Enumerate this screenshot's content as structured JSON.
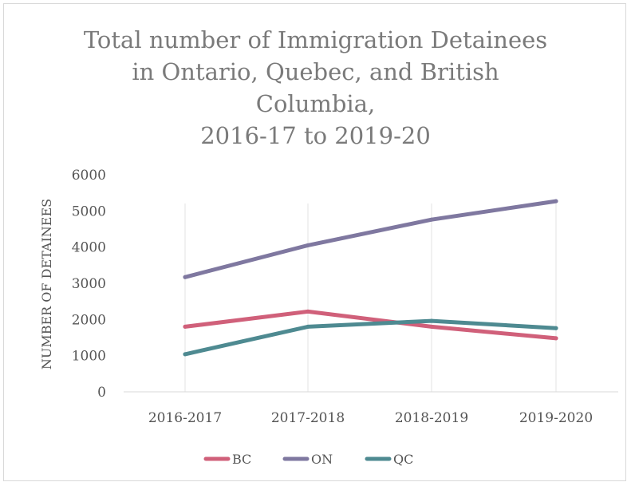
{
  "chart_data": {
    "type": "line",
    "title_lines": [
      "Total number of Immigration Detainees",
      "in Ontario, Quebec, and British",
      "Columbia,",
      "2016-17 to 2019-20"
    ],
    "ylabel": "NUMBER OF DETAINEES",
    "xlabel": "",
    "categories": [
      "2016-2017",
      "2017-2018",
      "2018-2019",
      "2019-2020"
    ],
    "ylim": [
      0,
      6000
    ],
    "yticks": [
      0,
      1000,
      2000,
      3000,
      4000,
      5000,
      6000
    ],
    "grid": "vertical",
    "legend_position": "bottom",
    "series": [
      {
        "name": "BC",
        "color": "#d0607a",
        "values": [
          1800,
          2220,
          1800,
          1480
        ]
      },
      {
        "name": "ON",
        "color": "#7f78a0",
        "values": [
          3170,
          4050,
          4760,
          5270
        ]
      },
      {
        "name": "QC",
        "color": "#4e8a91",
        "values": [
          1040,
          1800,
          1960,
          1760
        ]
      }
    ]
  }
}
